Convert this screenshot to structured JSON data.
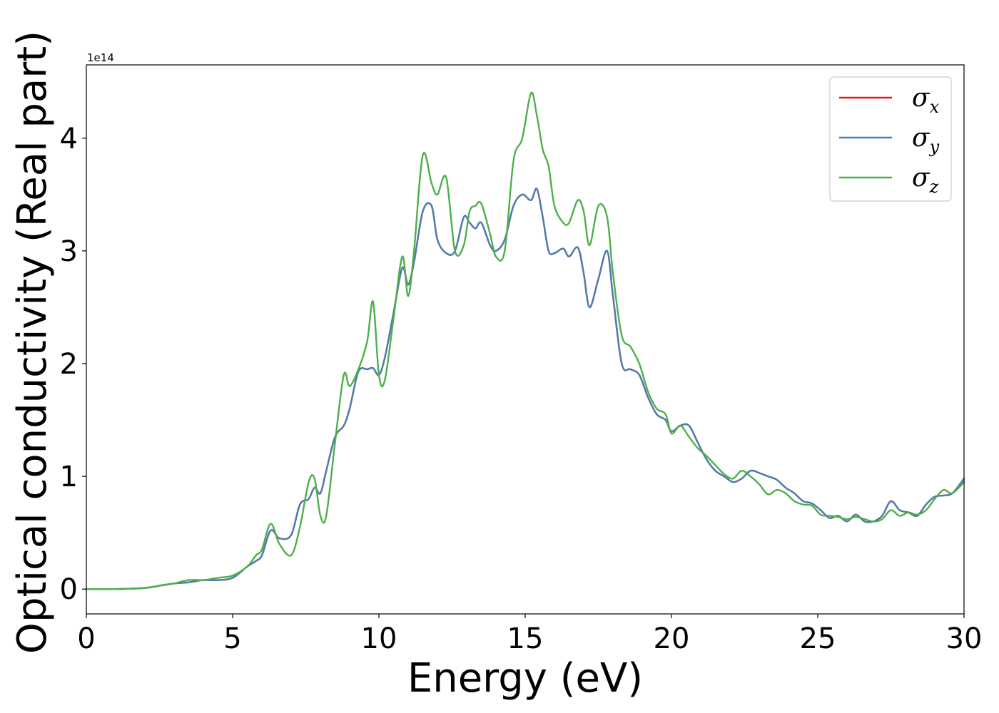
{
  "chart_data": {
    "type": "line",
    "xlabel": "Energy (eV)",
    "ylabel": "Optical conductivity (Real part)",
    "y_offset_label": "1e14",
    "xlim": [
      0,
      30
    ],
    "ylim": [
      -0.22,
      4.65
    ],
    "x_ticks": [
      0,
      5,
      10,
      15,
      20,
      25,
      30
    ],
    "y_ticks": [
      0,
      1,
      2,
      3,
      4
    ],
    "grid": false,
    "legend_position": "top-right",
    "series": [
      {
        "name": "σx",
        "symbol": "σ",
        "subscript": "x",
        "color": "#e41a1c",
        "x": [
          0,
          1,
          2,
          2.5,
          3,
          3.5,
          4,
          4.5,
          5,
          5.5,
          5.8,
          6,
          6.3,
          6.6,
          7,
          7.3,
          7.6,
          7.8,
          8,
          8.2,
          8.5,
          8.8,
          9,
          9.3,
          9.6,
          9.8,
          10,
          10.2,
          10.5,
          10.8,
          11,
          11.2,
          11.5,
          11.8,
          12,
          12.3,
          12.6,
          12.9,
          13.1,
          13.3,
          13.5,
          13.8,
          14,
          14.3,
          14.6,
          14.9,
          15.2,
          15.4,
          15.6,
          15.8,
          16,
          16.3,
          16.5,
          16.8,
          17,
          17.2,
          17.5,
          17.8,
          18,
          18.3,
          18.6,
          18.9,
          19.2,
          19.5,
          19.8,
          20,
          20.3,
          20.6,
          20.9,
          21.2,
          21.5,
          21.8,
          22.1,
          22.4,
          22.7,
          23,
          23.3,
          23.6,
          23.9,
          24.2,
          24.5,
          24.8,
          25.1,
          25.4,
          25.7,
          26,
          26.3,
          26.6,
          26.9,
          27.2,
          27.5,
          27.8,
          28.1,
          28.4,
          28.7,
          29,
          29.3,
          29.6,
          30
        ],
        "y": [
          0,
          0,
          0.01,
          0.03,
          0.05,
          0.06,
          0.08,
          0.08,
          0.1,
          0.2,
          0.25,
          0.3,
          0.52,
          0.45,
          0.48,
          0.75,
          0.8,
          0.9,
          0.85,
          1.05,
          1.35,
          1.45,
          1.6,
          1.93,
          1.95,
          1.96,
          1.9,
          2.05,
          2.45,
          2.85,
          2.7,
          2.9,
          3.35,
          3.4,
          3.1,
          2.98,
          3.0,
          3.3,
          3.25,
          3.2,
          3.25,
          3.05,
          3.0,
          3.1,
          3.4,
          3.5,
          3.45,
          3.55,
          3.3,
          3.0,
          2.98,
          3.02,
          2.95,
          3.03,
          2.8,
          2.5,
          2.75,
          3.0,
          2.6,
          2.0,
          1.95,
          1.9,
          1.7,
          1.55,
          1.5,
          1.4,
          1.45,
          1.45,
          1.3,
          1.15,
          1.05,
          1.0,
          0.95,
          0.98,
          1.05,
          1.03,
          1.0,
          0.97,
          0.9,
          0.85,
          0.78,
          0.76,
          0.7,
          0.63,
          0.65,
          0.6,
          0.66,
          0.6,
          0.6,
          0.65,
          0.78,
          0.7,
          0.68,
          0.65,
          0.75,
          0.82,
          0.83,
          0.85,
          0.98
        ]
      },
      {
        "name": "σy",
        "symbol": "σ",
        "subscript": "y",
        "color": "#4a7fb5",
        "x": [
          0,
          1,
          2,
          2.5,
          3,
          3.5,
          4,
          4.5,
          5,
          5.5,
          5.8,
          6,
          6.3,
          6.6,
          7,
          7.3,
          7.6,
          7.8,
          8,
          8.2,
          8.5,
          8.8,
          9,
          9.3,
          9.6,
          9.8,
          10,
          10.2,
          10.5,
          10.8,
          11,
          11.2,
          11.5,
          11.8,
          12,
          12.3,
          12.6,
          12.9,
          13.1,
          13.3,
          13.5,
          13.8,
          14,
          14.3,
          14.6,
          14.9,
          15.2,
          15.4,
          15.6,
          15.8,
          16,
          16.3,
          16.5,
          16.8,
          17,
          17.2,
          17.5,
          17.8,
          18,
          18.3,
          18.6,
          18.9,
          19.2,
          19.5,
          19.8,
          20,
          20.3,
          20.6,
          20.9,
          21.2,
          21.5,
          21.8,
          22.1,
          22.4,
          22.7,
          23,
          23.3,
          23.6,
          23.9,
          24.2,
          24.5,
          24.8,
          25.1,
          25.4,
          25.7,
          26,
          26.3,
          26.6,
          26.9,
          27.2,
          27.5,
          27.8,
          28.1,
          28.4,
          28.7,
          29,
          29.3,
          29.6,
          30
        ],
        "y": [
          0,
          0,
          0.01,
          0.03,
          0.05,
          0.06,
          0.08,
          0.08,
          0.1,
          0.2,
          0.25,
          0.3,
          0.52,
          0.45,
          0.48,
          0.75,
          0.8,
          0.9,
          0.85,
          1.05,
          1.35,
          1.45,
          1.6,
          1.93,
          1.95,
          1.96,
          1.9,
          2.05,
          2.45,
          2.85,
          2.7,
          2.9,
          3.35,
          3.4,
          3.1,
          2.98,
          3.0,
          3.3,
          3.25,
          3.2,
          3.25,
          3.05,
          3.0,
          3.1,
          3.4,
          3.5,
          3.45,
          3.55,
          3.3,
          3.0,
          2.98,
          3.02,
          2.95,
          3.03,
          2.8,
          2.5,
          2.75,
          3.0,
          2.6,
          2.0,
          1.95,
          1.9,
          1.7,
          1.55,
          1.5,
          1.4,
          1.45,
          1.45,
          1.3,
          1.15,
          1.05,
          1.0,
          0.95,
          0.98,
          1.05,
          1.03,
          1.0,
          0.97,
          0.9,
          0.85,
          0.78,
          0.76,
          0.7,
          0.63,
          0.65,
          0.6,
          0.66,
          0.6,
          0.6,
          0.65,
          0.78,
          0.7,
          0.68,
          0.65,
          0.75,
          0.82,
          0.83,
          0.85,
          0.98
        ]
      },
      {
        "name": "σz",
        "symbol": "σ",
        "subscript": "z",
        "color": "#4daf4a",
        "x": [
          0,
          1,
          2,
          2.5,
          3,
          3.5,
          4,
          4.5,
          5,
          5.5,
          5.8,
          6,
          6.3,
          6.6,
          7,
          7.3,
          7.6,
          7.8,
          8,
          8.2,
          8.5,
          8.8,
          9,
          9.3,
          9.6,
          9.8,
          10,
          10.2,
          10.5,
          10.8,
          11,
          11.2,
          11.5,
          11.8,
          12,
          12.3,
          12.6,
          12.9,
          13.1,
          13.3,
          13.5,
          13.8,
          14,
          14.3,
          14.6,
          14.9,
          15.2,
          15.4,
          15.6,
          15.8,
          16,
          16.3,
          16.5,
          16.8,
          17,
          17.2,
          17.5,
          17.8,
          18,
          18.3,
          18.6,
          18.9,
          19.2,
          19.5,
          19.8,
          20,
          20.3,
          20.6,
          20.9,
          21.2,
          21.5,
          21.8,
          22.1,
          22.4,
          22.7,
          23,
          23.3,
          23.6,
          23.9,
          24.2,
          24.5,
          24.8,
          25.1,
          25.4,
          25.7,
          26,
          26.3,
          26.6,
          26.9,
          27.2,
          27.5,
          27.8,
          28.1,
          28.4,
          28.7,
          29,
          29.3,
          29.6,
          30
        ],
        "y": [
          0,
          0,
          0.01,
          0.03,
          0.05,
          0.08,
          0.08,
          0.1,
          0.12,
          0.2,
          0.3,
          0.35,
          0.58,
          0.4,
          0.3,
          0.55,
          0.95,
          0.98,
          0.65,
          0.65,
          1.3,
          1.9,
          1.8,
          1.95,
          2.2,
          2.55,
          1.9,
          1.85,
          2.4,
          2.95,
          2.6,
          3.0,
          3.85,
          3.6,
          3.5,
          3.65,
          3.0,
          3.05,
          3.35,
          3.4,
          3.42,
          3.15,
          2.95,
          3.0,
          3.8,
          4.0,
          4.4,
          4.2,
          3.9,
          3.75,
          3.4,
          3.25,
          3.25,
          3.45,
          3.35,
          3.05,
          3.4,
          3.3,
          2.8,
          2.25,
          2.15,
          2.0,
          1.75,
          1.6,
          1.55,
          1.38,
          1.45,
          1.35,
          1.25,
          1.18,
          1.1,
          1.02,
          0.98,
          1.05,
          1.0,
          0.93,
          0.84,
          0.88,
          0.85,
          0.78,
          0.75,
          0.74,
          0.66,
          0.65,
          0.64,
          0.62,
          0.64,
          0.62,
          0.6,
          0.62,
          0.7,
          0.65,
          0.68,
          0.66,
          0.7,
          0.8,
          0.88,
          0.85,
          0.95
        ]
      }
    ]
  }
}
